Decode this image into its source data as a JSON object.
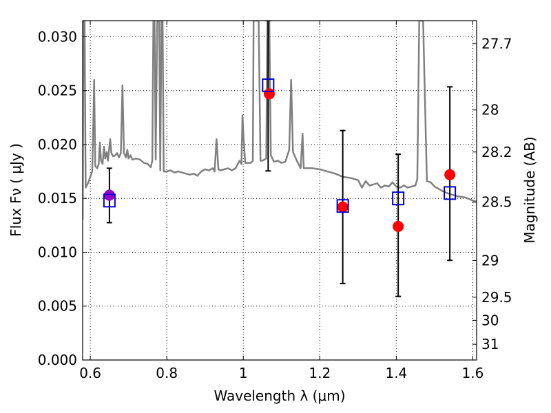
{
  "chart_data": {
    "type": "scatter",
    "xlabel": "Wavelength  λ (μm)",
    "ylabel": "Flux  Fν  ( μJy )",
    "y2label": "Magnitude (AB)",
    "xlim": [
      0.58,
      1.61
    ],
    "ylim": [
      0.0,
      0.0315
    ],
    "grid": true,
    "x_ticks": [
      {
        "value": 0.6,
        "label": "0.6"
      },
      {
        "value": 0.8,
        "label": "0.8"
      },
      {
        "value": 1.0,
        "label": "1"
      },
      {
        "value": 1.2,
        "label": "1.2"
      },
      {
        "value": 1.4,
        "label": "1.4"
      },
      {
        "value": 1.6,
        "label": "1.6"
      }
    ],
    "y_ticks": [
      {
        "value": 0.0,
        "label": "0.000"
      },
      {
        "value": 0.005,
        "label": "0.005"
      },
      {
        "value": 0.01,
        "label": "0.010"
      },
      {
        "value": 0.015,
        "label": "0.015"
      },
      {
        "value": 0.02,
        "label": "0.020"
      },
      {
        "value": 0.025,
        "label": "0.025"
      },
      {
        "value": 0.03,
        "label": "0.030"
      }
    ],
    "y2_ticks": [
      {
        "flux": 0.02935,
        "label": "27.7"
      },
      {
        "flux": 0.02321,
        "label": "28"
      },
      {
        "flux": 0.01931,
        "label": "28.2"
      },
      {
        "flux": 0.01465,
        "label": "28.5"
      },
      {
        "flux": 0.00924,
        "label": "29"
      },
      {
        "flux": 0.00583,
        "label": "29.5"
      },
      {
        "flux": 0.00368,
        "label": "30"
      },
      {
        "flux": 0.00146,
        "label": "31"
      }
    ],
    "series": [
      {
        "name": "model_spectrum",
        "kind": "line",
        "color": "#808080",
        "points": [
          [
            0.58,
            0.013
          ],
          [
            0.582,
            0.0315
          ],
          [
            0.585,
            0.0315
          ],
          [
            0.588,
            0.016
          ],
          [
            0.595,
            0.0165
          ],
          [
            0.6,
            0.017
          ],
          [
            0.605,
            0.0175
          ],
          [
            0.608,
            0.022
          ],
          [
            0.61,
            0.026
          ],
          [
            0.613,
            0.018
          ],
          [
            0.618,
            0.0178
          ],
          [
            0.622,
            0.0182
          ],
          [
            0.625,
            0.0202
          ],
          [
            0.628,
            0.0185
          ],
          [
            0.632,
            0.0182
          ],
          [
            0.636,
            0.0198
          ],
          [
            0.639,
            0.0187
          ],
          [
            0.643,
            0.0193
          ],
          [
            0.646,
            0.0185
          ],
          [
            0.649,
            0.0195
          ],
          [
            0.652,
            0.0205
          ],
          [
            0.655,
            0.0192
          ],
          [
            0.66,
            0.0189
          ],
          [
            0.665,
            0.019
          ],
          [
            0.67,
            0.0192
          ],
          [
            0.675,
            0.0188
          ],
          [
            0.68,
            0.0192
          ],
          [
            0.684,
            0.0255
          ],
          [
            0.688,
            0.0192
          ],
          [
            0.693,
            0.0188
          ],
          [
            0.697,
            0.0195
          ],
          [
            0.7,
            0.0187
          ],
          [
            0.705,
            0.019
          ],
          [
            0.71,
            0.0186
          ],
          [
            0.72,
            0.0187
          ],
          [
            0.73,
            0.0186
          ],
          [
            0.74,
            0.0183
          ],
          [
            0.75,
            0.0182
          ],
          [
            0.758,
            0.0179
          ],
          [
            0.762,
            0.0185
          ],
          [
            0.765,
            0.0315
          ],
          [
            0.768,
            0.0315
          ],
          [
            0.771,
            0.0186
          ],
          [
            0.775,
            0.0315
          ],
          [
            0.78,
            0.0315
          ],
          [
            0.783,
            0.0176
          ],
          [
            0.786,
            0.0315
          ],
          [
            0.789,
            0.0315
          ],
          [
            0.792,
            0.0175
          ],
          [
            0.8,
            0.0175
          ],
          [
            0.81,
            0.0176
          ],
          [
            0.82,
            0.0174
          ],
          [
            0.83,
            0.0175
          ],
          [
            0.84,
            0.0174
          ],
          [
            0.85,
            0.0173
          ],
          [
            0.86,
            0.0172
          ],
          [
            0.87,
            0.0173
          ],
          [
            0.88,
            0.0171
          ],
          [
            0.89,
            0.0175
          ],
          [
            0.9,
            0.0177
          ],
          [
            0.91,
            0.0176
          ],
          [
            0.92,
            0.0178
          ],
          [
            0.925,
            0.0175
          ],
          [
            0.93,
            0.0205
          ],
          [
            0.935,
            0.0177
          ],
          [
            0.94,
            0.0176
          ],
          [
            0.95,
            0.0177
          ],
          [
            0.96,
            0.0178
          ],
          [
            0.97,
            0.0176
          ],
          [
            0.98,
            0.0178
          ],
          [
            0.99,
            0.0185
          ],
          [
            0.995,
            0.0182
          ],
          [
            0.998,
            0.0227
          ],
          [
            1.001,
            0.0205
          ],
          [
            1.005,
            0.0183
          ],
          [
            1.01,
            0.0183
          ],
          [
            1.02,
            0.0183
          ],
          [
            1.025,
            0.0185
          ],
          [
            1.027,
            0.0315
          ],
          [
            1.04,
            0.0315
          ],
          [
            1.045,
            0.0185
          ],
          [
            1.05,
            0.0185
          ],
          [
            1.06,
            0.0187
          ],
          [
            1.063,
            0.0315
          ],
          [
            1.068,
            0.0315
          ],
          [
            1.072,
            0.019
          ],
          [
            1.08,
            0.0184
          ],
          [
            1.09,
            0.0185
          ],
          [
            1.1,
            0.0183
          ],
          [
            1.11,
            0.0184
          ],
          [
            1.12,
            0.0195
          ],
          [
            1.125,
            0.026
          ],
          [
            1.13,
            0.0193
          ],
          [
            1.14,
            0.0185
          ],
          [
            1.15,
            0.0178
          ],
          [
            1.155,
            0.021
          ],
          [
            1.158,
            0.0178
          ],
          [
            1.165,
            0.0178
          ],
          [
            1.18,
            0.0178
          ],
          [
            1.2,
            0.0177
          ],
          [
            1.22,
            0.0175
          ],
          [
            1.24,
            0.0173
          ],
          [
            1.26,
            0.017
          ],
          [
            1.28,
            0.0169
          ],
          [
            1.3,
            0.0167
          ],
          [
            1.31,
            0.016
          ],
          [
            1.32,
            0.0166
          ],
          [
            1.33,
            0.0162
          ],
          [
            1.34,
            0.0163
          ],
          [
            1.35,
            0.0164
          ],
          [
            1.36,
            0.016
          ],
          [
            1.37,
            0.0162
          ],
          [
            1.38,
            0.0161
          ],
          [
            1.39,
            0.0165
          ],
          [
            1.4,
            0.0161
          ],
          [
            1.41,
            0.016
          ],
          [
            1.42,
            0.0162
          ],
          [
            1.43,
            0.016
          ],
          [
            1.44,
            0.0161
          ],
          [
            1.45,
            0.0162
          ],
          [
            1.455,
            0.0168
          ],
          [
            1.46,
            0.0315
          ],
          [
            1.47,
            0.0315
          ],
          [
            1.48,
            0.0166
          ],
          [
            1.49,
            0.0165
          ],
          [
            1.5,
            0.0161
          ],
          [
            1.52,
            0.0157
          ],
          [
            1.54,
            0.0154
          ],
          [
            1.56,
            0.0152
          ],
          [
            1.58,
            0.0151
          ],
          [
            1.6,
            0.0148
          ],
          [
            1.61,
            0.0147
          ]
        ]
      },
      {
        "name": "observed_flux",
        "kind": "errorbar",
        "color": "#000000",
        "points": [
          {
            "x": 0.65,
            "y": 0.01525,
            "yerr_low": 0.01275,
            "yerr_high": 0.0178
          },
          {
            "x": 1.065,
            "y": 0.0262,
            "yerr_low": 0.01755,
            "yerr_high": 0.0315
          },
          {
            "x": 1.26,
            "y": 0.0142,
            "yerr_low": 0.0071,
            "yerr_high": 0.0213
          },
          {
            "x": 1.405,
            "y": 0.0124,
            "yerr_low": 0.0059,
            "yerr_high": 0.0191
          },
          {
            "x": 1.54,
            "y": 0.0172,
            "yerr_low": 0.00925,
            "yerr_high": 0.02535
          }
        ]
      },
      {
        "name": "measured_points",
        "kind": "marker-circle",
        "color": "#ff0000",
        "points": [
          [
            1.068,
            0.0247
          ],
          [
            1.26,
            0.0142
          ],
          [
            1.405,
            0.0124
          ],
          [
            1.54,
            0.0172
          ]
        ]
      },
      {
        "name": "highlighted_point",
        "kind": "marker-circle",
        "color": "#9900cc",
        "points": [
          [
            0.65,
            0.0153
          ]
        ]
      },
      {
        "name": "model_photometry",
        "kind": "marker-square",
        "color": "#0000cc",
        "points": [
          [
            0.65,
            0.0148
          ],
          [
            1.065,
            0.0255
          ],
          [
            1.26,
            0.0143
          ],
          [
            1.405,
            0.015
          ],
          [
            1.54,
            0.0155
          ]
        ]
      }
    ]
  }
}
